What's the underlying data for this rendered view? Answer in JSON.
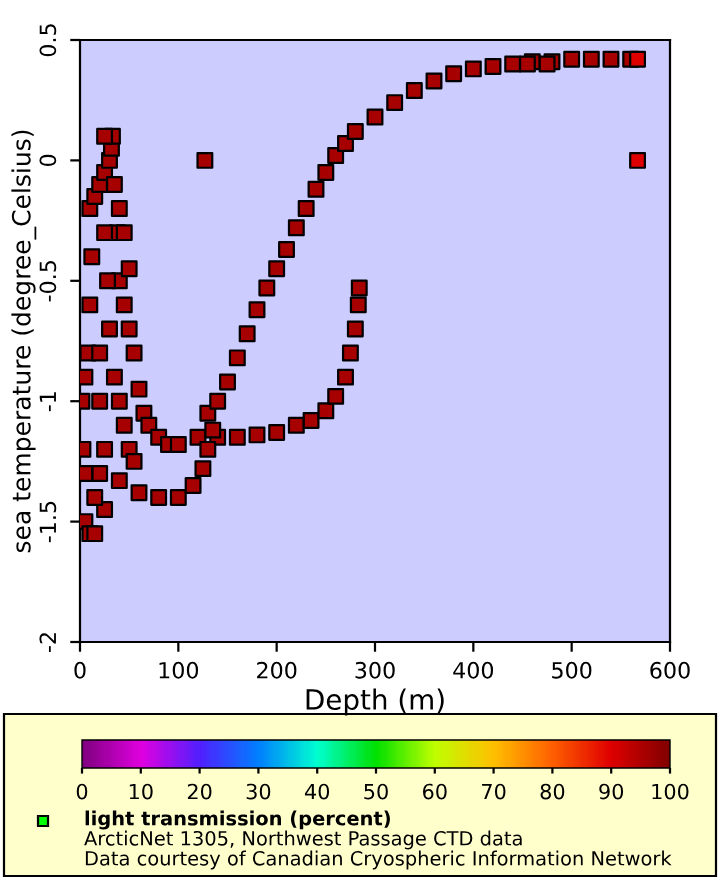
{
  "chart_data": {
    "type": "scatter",
    "xlabel": "Depth (m)",
    "ylabel": "sea temperature (degree_Celsius)",
    "clabel": "light transmission (percent)",
    "annotations": [
      "ArcticNet 1305, Northwest Passage CTD data",
      "Data courtesy of Canadian Cryospheric Information Network"
    ],
    "x": [
      130,
      140,
      150,
      160,
      170,
      180,
      190,
      200,
      210,
      220,
      230,
      240,
      250,
      260,
      270,
      280,
      300,
      320,
      340,
      360,
      380,
      400,
      420,
      440,
      460,
      480,
      500,
      520,
      540,
      560,
      120,
      140,
      160,
      180,
      200,
      220,
      235,
      250,
      260,
      270,
      275,
      280,
      283,
      284,
      20,
      40,
      60,
      80,
      100,
      115,
      125,
      130,
      135,
      5,
      10,
      15,
      5,
      3,
      2,
      5,
      8,
      10,
      12,
      10,
      15,
      20,
      25,
      30,
      32,
      33,
      35,
      38,
      40,
      45,
      50,
      55,
      60,
      65,
      70,
      80,
      90,
      100,
      25,
      28,
      30,
      35,
      40,
      45,
      50,
      55,
      20,
      20,
      25,
      25,
      15,
      40,
      45,
      50,
      25,
      127,
      567,
      567,
      455,
      475
    ],
    "values": [
      -1.05,
      -1.0,
      -0.92,
      -0.82,
      -0.72,
      -0.62,
      -0.53,
      -0.45,
      -0.37,
      -0.28,
      -0.2,
      -0.12,
      -0.05,
      0.02,
      0.07,
      0.12,
      0.18,
      0.24,
      0.29,
      0.33,
      0.36,
      0.38,
      0.39,
      0.4,
      0.41,
      0.41,
      0.42,
      0.42,
      0.42,
      0.42,
      -1.15,
      -1.15,
      -1.15,
      -1.14,
      -1.13,
      -1.1,
      -1.08,
      -1.04,
      -0.98,
      -0.9,
      -0.8,
      -0.7,
      -0.6,
      -0.53,
      -1.3,
      -1.33,
      -1.38,
      -1.4,
      -1.4,
      -1.35,
      -1.28,
      -1.2,
      -1.12,
      -1.5,
      -1.55,
      -1.55,
      -1.3,
      -1.2,
      -1.0,
      -0.9,
      -0.8,
      -0.6,
      -0.4,
      -0.2,
      -0.15,
      -0.1,
      -0.05,
      0.0,
      0.05,
      0.1,
      -0.1,
      -0.3,
      -0.5,
      -0.6,
      -0.7,
      -0.8,
      -0.95,
      -1.05,
      -1.1,
      -1.15,
      -1.18,
      -1.18,
      -0.3,
      -0.5,
      -0.7,
      -0.9,
      -1.0,
      -1.1,
      -1.2,
      -1.25,
      -0.8,
      -1.0,
      -1.2,
      -1.45,
      -1.4,
      -0.2,
      -0.3,
      -0.45,
      0.1,
      0.0,
      0.0,
      0.42,
      0.4,
      0.4
    ],
    "cvalues": [
      96,
      96,
      96,
      96,
      96,
      96,
      96,
      96,
      96,
      96,
      96,
      96,
      96,
      96,
      96,
      96,
      96,
      96,
      96,
      96,
      96,
      96,
      96,
      96,
      96,
      96,
      96,
      96,
      96,
      96,
      96,
      96,
      96,
      96,
      96,
      96,
      96,
      96,
      96,
      96,
      96,
      96,
      96,
      96,
      96,
      96,
      96,
      96,
      96,
      96,
      96,
      96,
      96,
      96,
      96,
      96,
      96,
      96,
      96,
      96,
      96,
      96,
      96,
      96,
      96,
      96,
      96,
      96,
      96,
      96,
      96,
      96,
      96,
      96,
      96,
      96,
      96,
      96,
      96,
      96,
      96,
      96,
      96,
      96,
      96,
      96,
      96,
      96,
      96,
      96,
      96,
      96,
      96,
      96,
      96,
      96,
      96,
      96,
      96,
      96,
      90,
      90,
      96,
      96
    ],
    "xlim": [
      0,
      600
    ],
    "xticks": [
      0,
      100,
      200,
      300,
      400,
      500,
      600
    ],
    "ylim": [
      -2,
      0.5
    ],
    "yticks": [
      {
        "value": -2,
        "label": "-2"
      },
      {
        "value": -1.5,
        "label": "-1.5"
      },
      {
        "value": -1,
        "label": "-1"
      },
      {
        "value": -0.5,
        "label": "-0.5"
      },
      0,
      0.5
    ],
    "clim": [
      0,
      100
    ],
    "cticks": [
      0,
      10,
      20,
      30,
      40,
      50,
      60,
      70,
      80,
      90,
      100
    ],
    "marker": "square",
    "grid": false,
    "legend": false
  }
}
